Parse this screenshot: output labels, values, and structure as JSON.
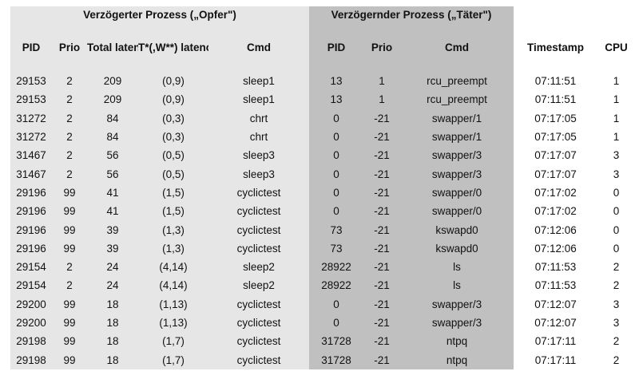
{
  "groups": {
    "victim": "Verzögerter Prozess („Opfer\")",
    "culprit": "Verzögernder Prozess („Täter\")"
  },
  "headers": {
    "victim_pid": "PID",
    "victim_prio": "Prio",
    "total_latency": "Total latency (µs)",
    "tw_latency": "T*(,W**) latency (µs)",
    "victim_cmd": "Cmd",
    "culprit_pid": "PID",
    "culprit_prio": "Prio",
    "culprit_cmd": "Cmd",
    "timestamp": "Timestamp",
    "cpu": "CPU"
  },
  "rows": [
    {
      "pid": "29153",
      "prio": "2",
      "total": "209",
      "tw": "(0,9)",
      "cmd": "sleep1",
      "cpid": "13",
      "cprio": "1",
      "ccmd": "rcu_preempt",
      "ts": "07:11:51",
      "cpu": "1"
    },
    {
      "pid": "29153",
      "prio": "2",
      "total": "209",
      "tw": "(0,9)",
      "cmd": "sleep1",
      "cpid": "13",
      "cprio": "1",
      "ccmd": "rcu_preempt",
      "ts": "07:11:51",
      "cpu": "1"
    },
    {
      "pid": "31272",
      "prio": "2",
      "total": "84",
      "tw": "(0,3)",
      "cmd": "chrt",
      "cpid": "0",
      "cprio": "-21",
      "ccmd": "swapper/1",
      "ts": "07:17:05",
      "cpu": "1"
    },
    {
      "pid": "31272",
      "prio": "2",
      "total": "84",
      "tw": "(0,3)",
      "cmd": "chrt",
      "cpid": "0",
      "cprio": "-21",
      "ccmd": "swapper/1",
      "ts": "07:17:05",
      "cpu": "1"
    },
    {
      "pid": "31467",
      "prio": "2",
      "total": "56",
      "tw": "(0,5)",
      "cmd": "sleep3",
      "cpid": "0",
      "cprio": "-21",
      "ccmd": "swapper/3",
      "ts": "07:17:07",
      "cpu": "3"
    },
    {
      "pid": "31467",
      "prio": "2",
      "total": "56",
      "tw": "(0,5)",
      "cmd": "sleep3",
      "cpid": "0",
      "cprio": "-21",
      "ccmd": "swapper/3",
      "ts": "07:17:07",
      "cpu": "3"
    },
    {
      "pid": "29196",
      "prio": "99",
      "total": "41",
      "tw": "(1,5)",
      "cmd": "cyclictest",
      "cpid": "0",
      "cprio": "-21",
      "ccmd": "swapper/0",
      "ts": "07:17:02",
      "cpu": "0"
    },
    {
      "pid": "29196",
      "prio": "99",
      "total": "41",
      "tw": "(1,5)",
      "cmd": "cyclictest",
      "cpid": "0",
      "cprio": "-21",
      "ccmd": "swapper/0",
      "ts": "07:17:02",
      "cpu": "0"
    },
    {
      "pid": "29196",
      "prio": "99",
      "total": "39",
      "tw": "(1,3)",
      "cmd": "cyclictest",
      "cpid": "73",
      "cprio": "-21",
      "ccmd": "kswapd0",
      "ts": "07:12:06",
      "cpu": "0"
    },
    {
      "pid": "29196",
      "prio": "99",
      "total": "39",
      "tw": "(1,3)",
      "cmd": "cyclictest",
      "cpid": "73",
      "cprio": "-21",
      "ccmd": "kswapd0",
      "ts": "07:12:06",
      "cpu": "0"
    },
    {
      "pid": "29154",
      "prio": "2",
      "total": "24",
      "tw": "(4,14)",
      "cmd": "sleep2",
      "cpid": "28922",
      "cprio": "-21",
      "ccmd": "ls",
      "ts": "07:11:53",
      "cpu": "2"
    },
    {
      "pid": "29154",
      "prio": "2",
      "total": "24",
      "tw": "(4,14)",
      "cmd": "sleep2",
      "cpid": "28922",
      "cprio": "-21",
      "ccmd": "ls",
      "ts": "07:11:53",
      "cpu": "2"
    },
    {
      "pid": "29200",
      "prio": "99",
      "total": "18",
      "tw": "(1,13)",
      "cmd": "cyclictest",
      "cpid": "0",
      "cprio": "-21",
      "ccmd": "swapper/3",
      "ts": "07:12:07",
      "cpu": "3"
    },
    {
      "pid": "29200",
      "prio": "99",
      "total": "18",
      "tw": "(1,13)",
      "cmd": "cyclictest",
      "cpid": "0",
      "cprio": "-21",
      "ccmd": "swapper/3",
      "ts": "07:12:07",
      "cpu": "3"
    },
    {
      "pid": "29198",
      "prio": "99",
      "total": "18",
      "tw": "(1,7)",
      "cmd": "cyclictest",
      "cpid": "31728",
      "cprio": "-21",
      "ccmd": "ntpq",
      "ts": "07:17:11",
      "cpu": "2"
    },
    {
      "pid": "29198",
      "prio": "99",
      "total": "18",
      "tw": "(1,7)",
      "cmd": "cyclictest",
      "cpid": "31728",
      "cprio": "-21",
      "ccmd": "ntpq",
      "ts": "07:17:11",
      "cpu": "2"
    }
  ]
}
